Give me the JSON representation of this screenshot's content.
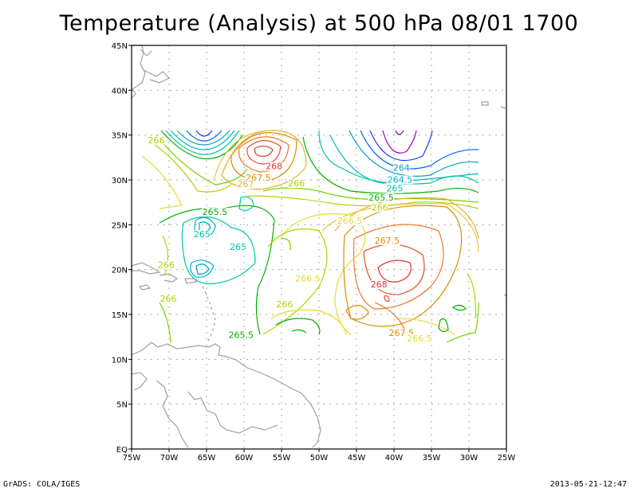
{
  "title": "Temperature (Analysis) at 500 hPa 08/01 1700",
  "footer": {
    "left": "GrADS: COLA/IGES",
    "right": "2013-05-21-12:47"
  },
  "axes": {
    "lon_labels": [
      "75W",
      "70W",
      "65W",
      "60W",
      "55W",
      "50W",
      "45W",
      "40W",
      "35W",
      "30W",
      "25W"
    ],
    "lat_labels": [
      "EQ",
      "5N",
      "10N",
      "15N",
      "20N",
      "25N",
      "30N",
      "35N",
      "40N",
      "45N"
    ]
  },
  "chart_data": {
    "type": "contour",
    "variable": "Temperature (K)",
    "level": "500 hPa",
    "lon_range": [
      -75,
      -25
    ],
    "lat_range": [
      0,
      45
    ],
    "contour_interval": 0.5,
    "contour_labels": [
      {
        "text": "266",
        "lon": -71.7,
        "lat": 34.1,
        "color": "#b4d200"
      },
      {
        "text": "267.5",
        "lon": -58.1,
        "lat": 29.9,
        "color": "#dc8c00"
      },
      {
        "text": "267",
        "lon": -59.8,
        "lat": 29.2,
        "color": "#e6af2d"
      },
      {
        "text": "268",
        "lon": -56.0,
        "lat": 31.2,
        "color": "#e63232"
      },
      {
        "text": "266",
        "lon": -53.0,
        "lat": 29.3,
        "color": "#b4d200"
      },
      {
        "text": "264",
        "lon": -39.0,
        "lat": 31.0,
        "color": "#00a0c8"
      },
      {
        "text": "264.5",
        "lon": -39.2,
        "lat": 29.7,
        "color": "#00b4c8"
      },
      {
        "text": "265",
        "lon": -39.9,
        "lat": 28.7,
        "color": "#00c8a0"
      },
      {
        "text": "265.5",
        "lon": -41.7,
        "lat": 27.7,
        "color": "#00b400"
      },
      {
        "text": "266",
        "lon": -41.9,
        "lat": 26.6,
        "color": "#b4d200"
      },
      {
        "text": "265.5",
        "lon": -63.9,
        "lat": 26.1,
        "color": "#00b400"
      },
      {
        "text": "266.5",
        "lon": -45.9,
        "lat": 25.1,
        "color": "#e6dc32"
      },
      {
        "text": "265",
        "lon": -65.6,
        "lat": 23.6,
        "color": "#00c8a0"
      },
      {
        "text": "265",
        "lon": -60.8,
        "lat": 22.2,
        "color": "#00c8a0"
      },
      {
        "text": "267.5",
        "lon": -40.9,
        "lat": 22.9,
        "color": "#dc8c00"
      },
      {
        "text": "266",
        "lon": -70.4,
        "lat": 20.2,
        "color": "#b4d200"
      },
      {
        "text": "266.5",
        "lon": -51.5,
        "lat": 18.7,
        "color": "#e6dc32"
      },
      {
        "text": "268",
        "lon": -42.0,
        "lat": 18.0,
        "color": "#e63232"
      },
      {
        "text": "266",
        "lon": -70.1,
        "lat": 16.4,
        "color": "#b4d200"
      },
      {
        "text": "266",
        "lon": -54.6,
        "lat": 15.8,
        "color": "#b4d200"
      },
      {
        "text": "265.5",
        "lon": -60.4,
        "lat": 12.4,
        "color": "#00b400"
      },
      {
        "text": "267.5",
        "lon": -39.0,
        "lat": 12.6,
        "color": "#dc8c00"
      },
      {
        "text": "266.5",
        "lon": -36.6,
        "lat": 12.0,
        "color": "#e6dc32"
      }
    ],
    "grid": true
  }
}
